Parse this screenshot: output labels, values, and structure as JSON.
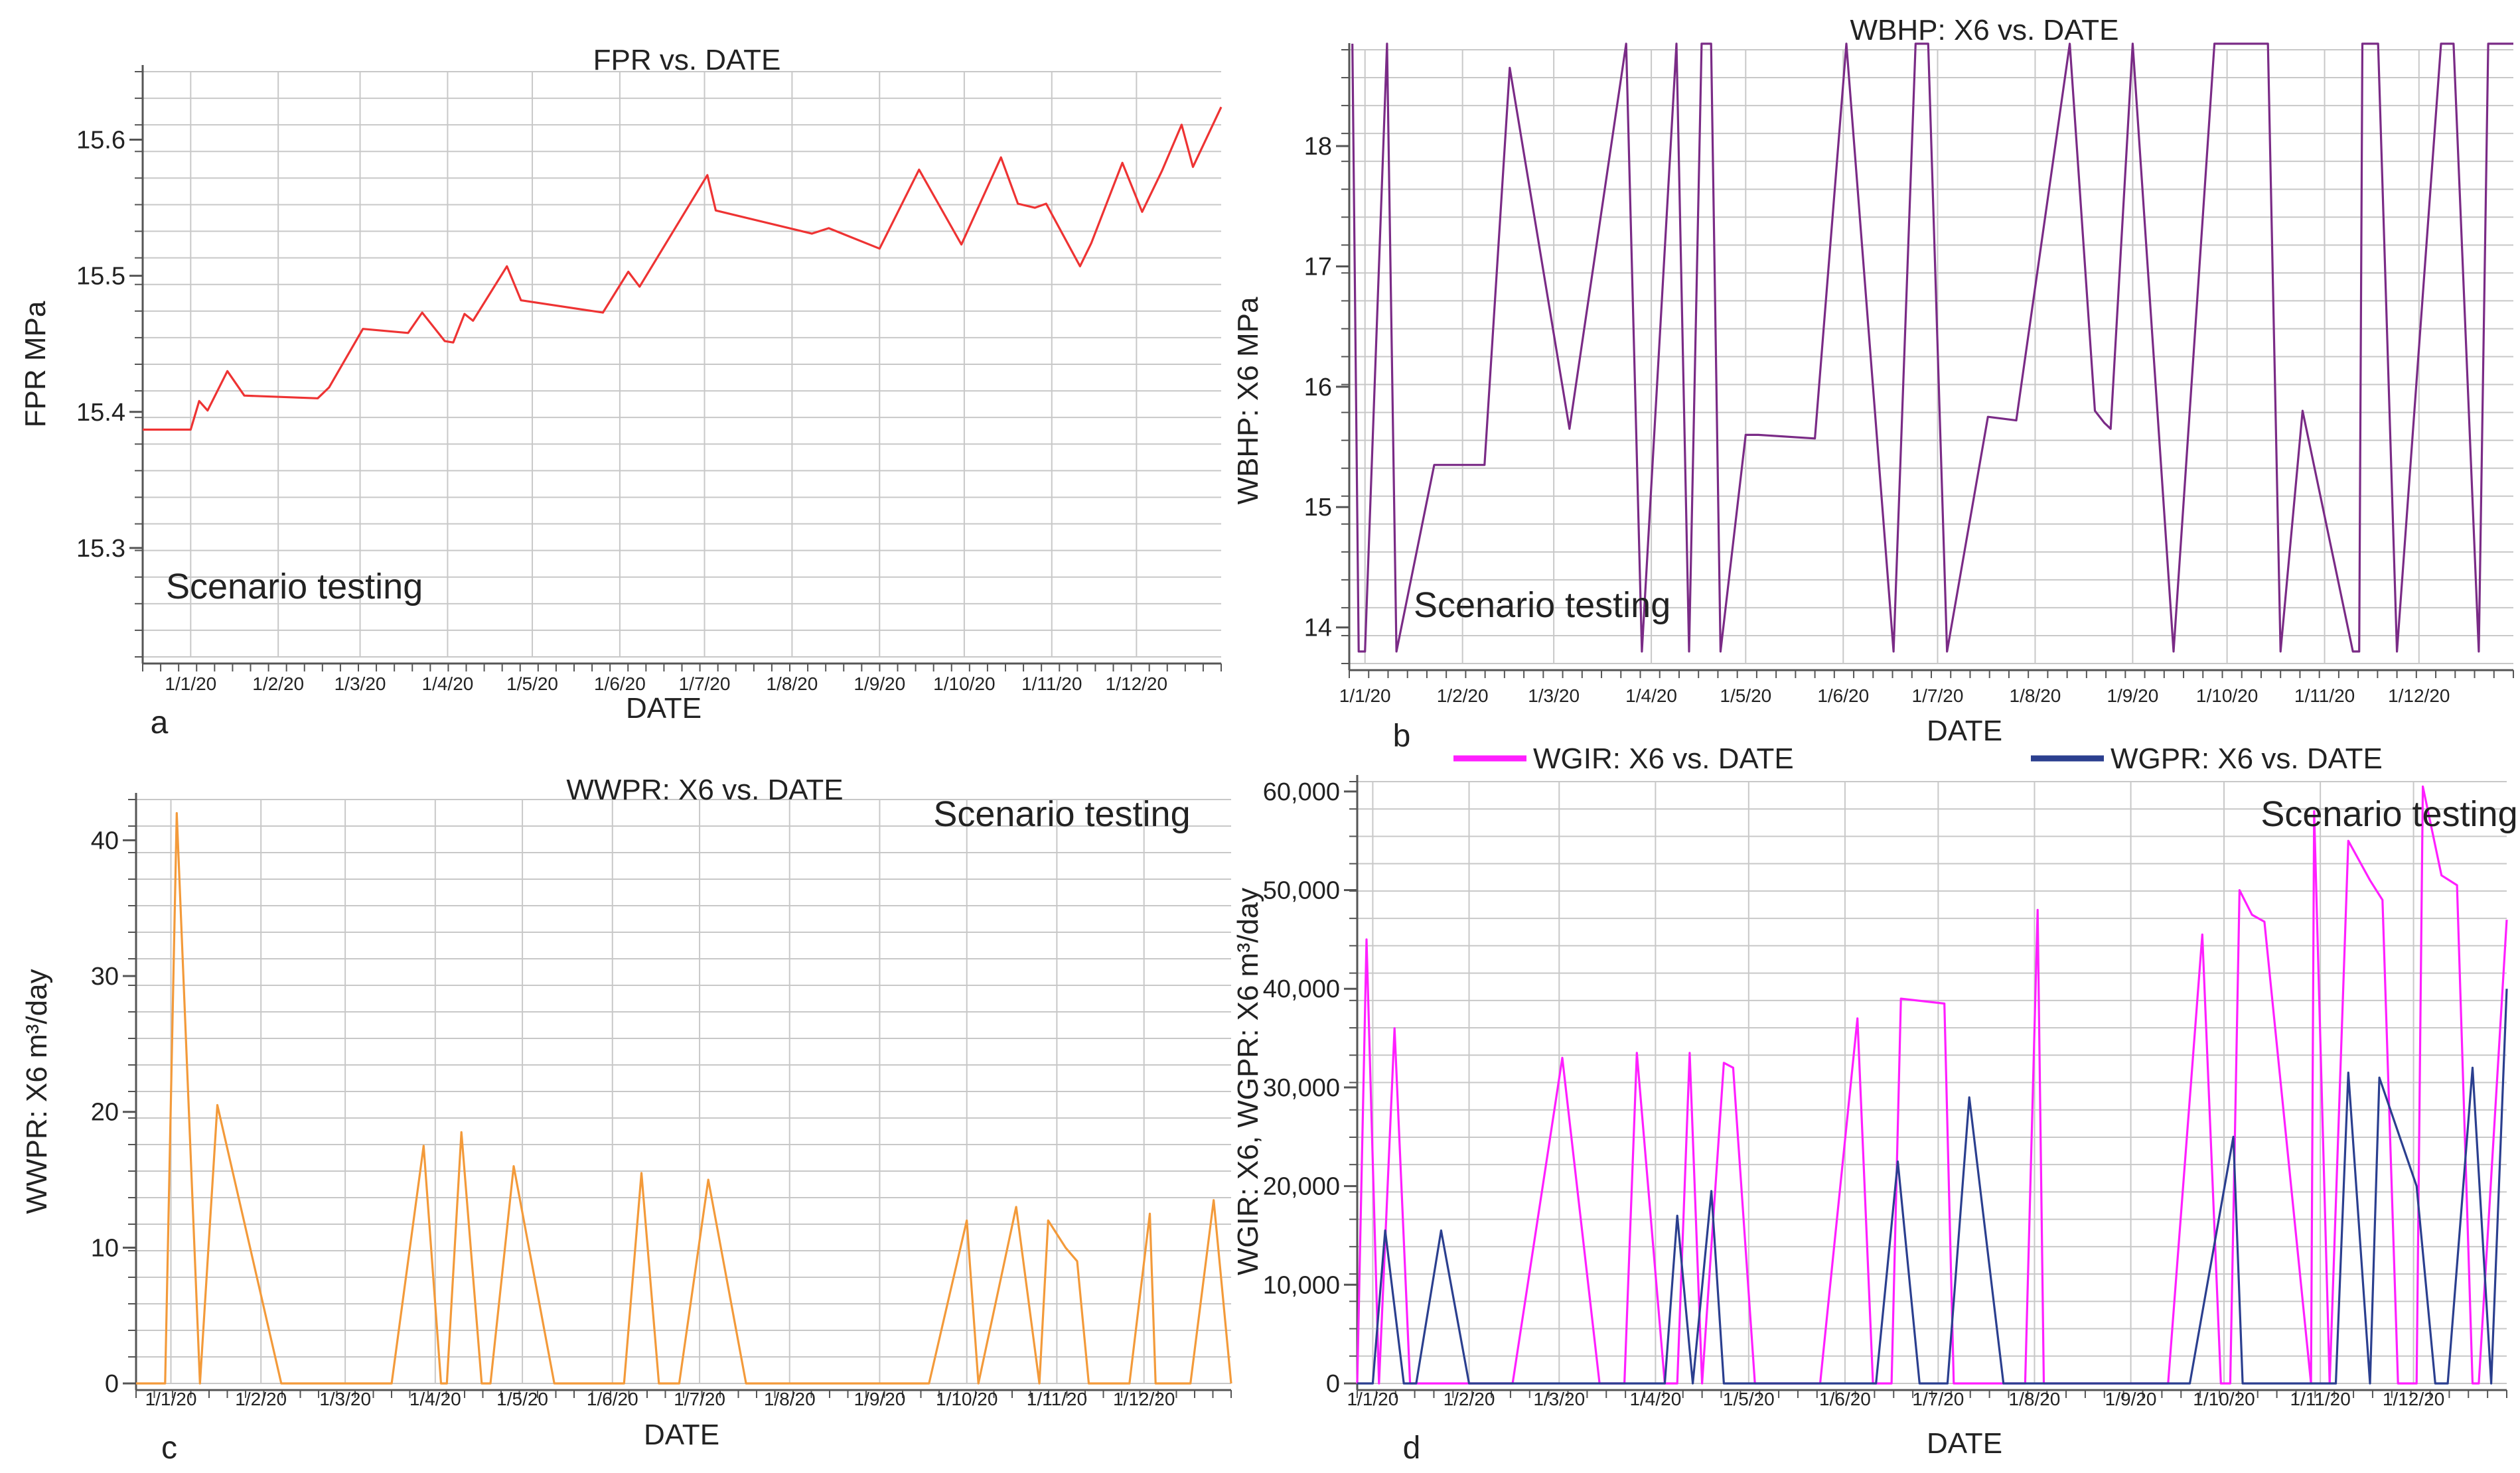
{
  "annotation": "Scenario testing",
  "xlabel": "DATE",
  "x_ticks": [
    "1/1/20",
    "1/2/20",
    "1/3/20",
    "1/4/20",
    "1/5/20",
    "1/6/20",
    "1/7/20",
    "1/8/20",
    "1/9/20",
    "1/10/20",
    "1/11/20",
    "1/12/20"
  ],
  "colors": {
    "a": "#ee3333",
    "b": "#7a2b86",
    "c": "#f39a3a",
    "d_gir": "#ff1fff",
    "d_gpr": "#2b3f8f",
    "grid": "#c8c8c8",
    "axis": "#555555"
  },
  "chart_data": [
    {
      "panel": "a",
      "type": "line",
      "title": "FPR vs. DATE",
      "xlabel": "DATE",
      "ylabel": "FPR MPa",
      "x_type": "date",
      "xlim": [
        "2019-12-15",
        "2020-12-31"
      ],
      "ylim": [
        15.22,
        15.65
      ],
      "y_ticks": [
        15.3,
        15.4,
        15.5,
        15.6
      ],
      "y_tick_labels": [
        "15.3",
        "15.4",
        "15.5",
        "15.6"
      ],
      "grid": true,
      "series": [
        {
          "x": [
            "2019-12-15",
            "2020-01-01",
            "2020-01-04",
            "2020-01-07",
            "2020-01-14",
            "2020-01-20",
            "2020-02-15",
            "2020-02-19",
            "2020-03-02",
            "2020-03-18",
            "2020-03-23",
            "2020-03-31",
            "2020-04-03",
            "2020-04-07",
            "2020-04-10",
            "2020-04-22",
            "2020-04-27",
            "2020-05-26",
            "2020-06-04",
            "2020-06-08",
            "2020-07-02",
            "2020-07-05",
            "2020-08-08",
            "2020-08-14",
            "2020-09-01",
            "2020-09-15",
            "2020-09-30",
            "2020-10-14",
            "2020-10-20",
            "2020-10-26",
            "2020-10-30",
            "2020-11-11",
            "2020-11-15",
            "2020-11-26",
            "2020-12-03",
            "2020-12-10",
            "2020-12-17",
            "2020-12-21",
            "2020-12-31"
          ],
          "values": [
            15.387,
            15.387,
            15.408,
            15.401,
            15.43,
            15.412,
            15.41,
            15.418,
            15.461,
            15.458,
            15.473,
            15.452,
            15.451,
            15.472,
            15.467,
            15.507,
            15.482,
            15.473,
            15.503,
            15.492,
            15.574,
            15.548,
            15.531,
            15.535,
            15.52,
            15.578,
            15.523,
            15.587,
            15.553,
            15.55,
            15.553,
            15.507,
            15.524,
            15.583,
            15.547,
            15.577,
            15.611,
            15.58,
            15.624
          ]
        }
      ]
    },
    {
      "panel": "b",
      "type": "line",
      "title": "WBHP: X6 vs. DATE",
      "xlabel": "DATE",
      "ylabel": "WBHP: X6 MPa",
      "x_type": "date",
      "xlim": [
        "2019-12-27",
        "2020-12-31"
      ],
      "ylim": [
        13.7,
        18.8
      ],
      "y_ticks": [
        14,
        15,
        16,
        17,
        18
      ],
      "y_tick_labels": [
        "14",
        "15",
        "16",
        "17",
        "18"
      ],
      "grid": true,
      "series": [
        {
          "x": [
            "2019-12-28",
            "2019-12-30",
            "2020-01-01",
            "2020-01-08",
            "2020-01-11",
            "2020-01-23",
            "2020-01-26",
            "2020-02-08",
            "2020-02-16",
            "2020-03-06",
            "2020-03-24",
            "2020-03-29",
            "2020-04-09",
            "2020-04-13",
            "2020-04-17",
            "2020-04-20",
            "2020-04-23",
            "2020-05-01",
            "2020-05-05",
            "2020-05-23",
            "2020-06-02",
            "2020-06-17",
            "2020-06-24",
            "2020-06-28",
            "2020-07-04",
            "2020-07-17",
            "2020-07-26",
            "2020-08-12",
            "2020-08-20",
            "2020-08-23",
            "2020-08-25",
            "2020-09-01",
            "2020-09-14",
            "2020-09-27",
            "2020-10-14",
            "2020-10-18",
            "2020-10-25",
            "2020-11-10",
            "2020-11-12",
            "2020-11-13",
            "2020-11-18",
            "2020-11-24",
            "2020-12-08",
            "2020-12-12",
            "2020-12-20",
            "2020-12-23",
            "2020-12-31"
          ],
          "values": [
            18.85,
            13.8,
            13.8,
            18.85,
            13.8,
            15.35,
            15.35,
            15.35,
            18.65,
            15.65,
            18.85,
            13.8,
            18.85,
            13.8,
            18.85,
            18.85,
            13.8,
            15.6,
            15.6,
            15.57,
            18.85,
            13.8,
            18.85,
            18.85,
            13.8,
            15.75,
            15.72,
            18.85,
            15.8,
            15.7,
            15.65,
            18.85,
            13.8,
            18.85,
            18.85,
            13.8,
            15.8,
            13.8,
            13.8,
            18.85,
            18.85,
            13.8,
            18.85,
            18.85,
            13.8,
            18.85,
            18.85
          ]
        }
      ]
    },
    {
      "panel": "c",
      "type": "line",
      "title": "WWPR: X6 vs. DATE",
      "xlabel": "DATE",
      "ylabel": "WWPR: X6  m³/day",
      "x_type": "date",
      "xlim": [
        "2019-12-20",
        "2020-12-31"
      ],
      "ylim": [
        0,
        43
      ],
      "y_ticks": [
        0,
        10,
        20,
        30,
        40
      ],
      "y_tick_labels": [
        "0",
        "10",
        "20",
        "30",
        "40"
      ],
      "grid": true,
      "series": [
        {
          "x": [
            "2019-12-20",
            "2019-12-30",
            "2020-01-03",
            "2020-01-11",
            "2020-01-17",
            "2020-02-08",
            "2020-03-17",
            "2020-03-28",
            "2020-04-03",
            "2020-04-05",
            "2020-04-10",
            "2020-04-17",
            "2020-04-20",
            "2020-04-28",
            "2020-05-12",
            "2020-06-05",
            "2020-06-11",
            "2020-06-17",
            "2020-06-24",
            "2020-07-04",
            "2020-07-17",
            "2020-09-18",
            "2020-10-01",
            "2020-10-05",
            "2020-10-18",
            "2020-10-26",
            "2020-10-29",
            "2020-11-04",
            "2020-11-08",
            "2020-11-12",
            "2020-11-26",
            "2020-12-03",
            "2020-12-05",
            "2020-12-17",
            "2020-12-25",
            "2020-12-31"
          ],
          "values": [
            0,
            0,
            42,
            0,
            20.5,
            0,
            0,
            17.5,
            0,
            0,
            18.5,
            0,
            0,
            16,
            0,
            0,
            15.5,
            0,
            0,
            15,
            0,
            0,
            12,
            0,
            13,
            0,
            12,
            10,
            9,
            0,
            0,
            12.5,
            0,
            0,
            13.5,
            0
          ]
        }
      ]
    },
    {
      "panel": "d",
      "type": "line",
      "xlabel": "DATE",
      "ylabel": "WGIR: X6, WGPR: X6  m³/day",
      "x_type": "date",
      "xlim": [
        "2019-12-27",
        "2020-12-31"
      ],
      "ylim": [
        0,
        61000
      ],
      "y_ticks": [
        0,
        10000,
        20000,
        30000,
        40000,
        50000,
        60000
      ],
      "y_tick_labels": [
        "0",
        "10,000",
        "20,000",
        "30,000",
        "40,000",
        "50,000",
        "60,000"
      ],
      "grid": true,
      "legend": "top",
      "series": [
        {
          "name": "WGIR: X6 vs. DATE",
          "x": [
            "2019-12-27",
            "2019-12-30",
            "2020-01-03",
            "2020-01-08",
            "2020-01-13",
            "2020-01-18",
            "2020-02-15",
            "2020-03-02",
            "2020-03-14",
            "2020-03-22",
            "2020-03-26",
            "2020-04-04",
            "2020-04-08",
            "2020-04-12",
            "2020-04-16",
            "2020-04-23",
            "2020-04-26",
            "2020-05-03",
            "2020-05-05",
            "2020-05-13",
            "2020-05-24",
            "2020-06-05",
            "2020-06-10",
            "2020-06-16",
            "2020-06-19",
            "2020-07-03",
            "2020-07-06",
            "2020-07-13",
            "2020-07-29",
            "2020-08-02",
            "2020-08-04",
            "2020-08-06",
            "2020-08-08",
            "2020-09-13",
            "2020-09-24",
            "2020-09-30",
            "2020-10-03",
            "2020-10-06",
            "2020-10-10",
            "2020-10-14",
            "2020-10-29",
            "2020-10-30",
            "2020-11-04",
            "2020-11-10",
            "2020-11-17",
            "2020-11-20",
            "2020-11-21",
            "2020-11-26",
            "2020-12-02",
            "2020-12-04",
            "2020-12-10",
            "2020-12-15",
            "2020-12-20",
            "2020-12-22",
            "2020-12-31"
          ],
          "values": [
            0,
            45000,
            0,
            36000,
            0,
            0,
            0,
            33000,
            0,
            0,
            33500,
            0,
            0,
            33500,
            0,
            32500,
            32000,
            0,
            0,
            0,
            0,
            37000,
            0,
            0,
            39000,
            38500,
            0,
            0,
            0,
            48000,
            0,
            0,
            0,
            0,
            45500,
            0,
            0,
            50000,
            47500,
            46800,
            0,
            58000,
            0,
            55000,
            51000,
            49500,
            49000,
            0,
            0,
            60500,
            51500,
            50500,
            0,
            0,
            47000
          ]
        },
        {
          "name": "WGPR: X6 vs. DATE",
          "x": [
            "2019-12-27",
            "2020-01-01",
            "2020-01-05",
            "2020-01-11",
            "2020-01-15",
            "2020-01-23",
            "2020-02-01",
            "2020-03-25",
            "2020-04-04",
            "2020-04-08",
            "2020-04-13",
            "2020-04-19",
            "2020-04-23",
            "2020-05-06",
            "2020-05-19",
            "2020-06-05",
            "2020-06-11",
            "2020-06-18",
            "2020-06-25",
            "2020-07-04",
            "2020-07-11",
            "2020-07-22",
            "2020-09-20",
            "2020-10-04",
            "2020-10-07",
            "2020-10-17",
            "2020-10-26",
            "2020-11-01",
            "2020-11-06",
            "2020-11-10",
            "2020-11-17",
            "2020-11-20",
            "2020-12-02",
            "2020-12-08",
            "2020-12-12",
            "2020-12-20",
            "2020-12-26",
            "2020-12-31"
          ],
          "values": [
            0,
            0,
            15500,
            0,
            0,
            15500,
            0,
            0,
            0,
            17000,
            0,
            19500,
            0,
            0,
            0,
            0,
            0,
            22500,
            0,
            0,
            29000,
            0,
            0,
            25000,
            0,
            0,
            0,
            0,
            0,
            31500,
            0,
            31000,
            20000,
            0,
            0,
            32000,
            0,
            40000
          ]
        }
      ]
    }
  ]
}
